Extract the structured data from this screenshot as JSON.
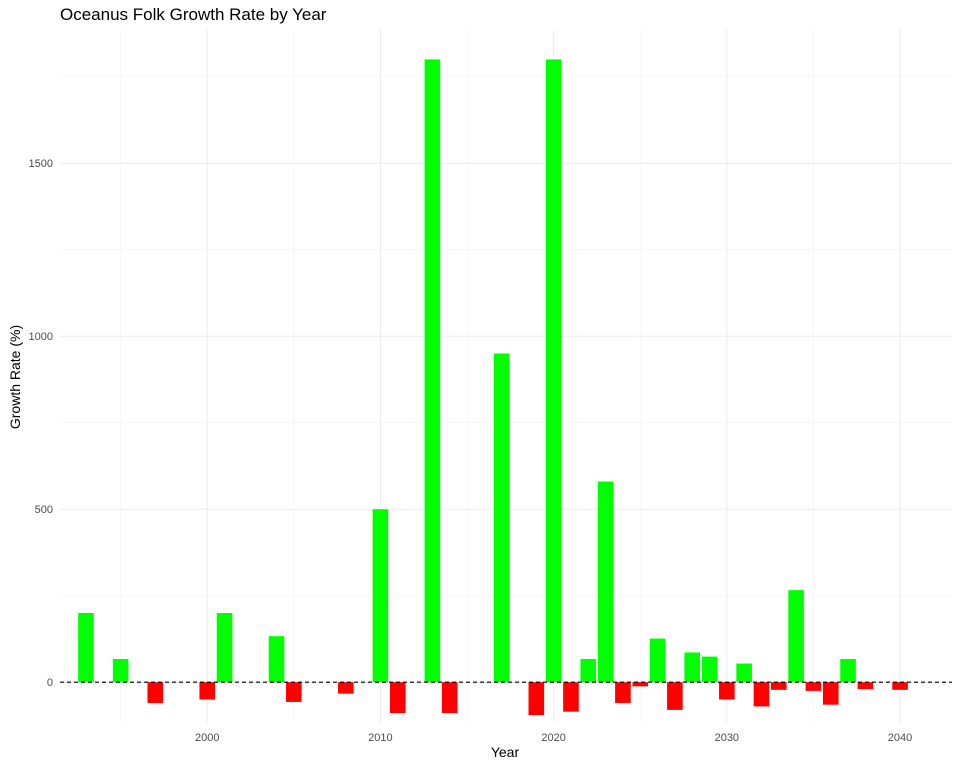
{
  "chart_data": {
    "type": "bar",
    "title": "Oceanus Folk Growth Rate by Year",
    "xlabel": "Year",
    "ylabel": "Growth Rate (%)",
    "xlim": [
      1991.5,
      2043
    ],
    "ylim": [
      -115,
      1885
    ],
    "x_ticks": [
      2000,
      2010,
      2020,
      2030,
      2040
    ],
    "y_ticks": [
      0,
      500,
      1000,
      1500
    ],
    "grid": true,
    "reference_line": {
      "y": 0,
      "style": "dashed"
    },
    "colors": {
      "positive": "#00ff00",
      "negative": "#ff0000"
    },
    "x": [
      1993,
      1995,
      1997,
      2000,
      2001,
      2004,
      2005,
      2008,
      2010,
      2011,
      2013,
      2014,
      2017,
      2019,
      2020,
      2021,
      2022,
      2023,
      2024,
      2025,
      2026,
      2027,
      2028,
      2029,
      2030,
      2031,
      2032,
      2033,
      2034,
      2035,
      2036,
      2037,
      2038,
      2040
    ],
    "values": [
      200,
      67,
      -60,
      -50,
      200,
      133,
      -57,
      -33,
      500,
      -89,
      1800,
      -89,
      950,
      -95,
      1800,
      -85,
      67,
      580,
      -60,
      -12,
      126,
      -80,
      86,
      74,
      -50,
      54,
      -70,
      -22,
      266,
      -25,
      -65,
      67,
      -20,
      -22
    ]
  }
}
